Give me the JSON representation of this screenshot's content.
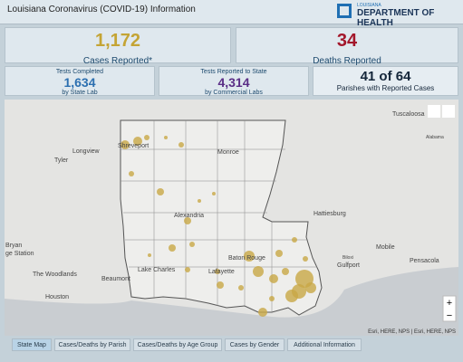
{
  "header": {
    "title": "Louisiana Coronavirus (COVID-19) Information",
    "logo_top": "LOUISIANA",
    "logo_main": "DEPARTMENT OF HEALTH"
  },
  "stats": {
    "cases": {
      "value": "1,172",
      "label": "Cases Reported*"
    },
    "deaths": {
      "value": "34",
      "label": "Deaths Reported"
    },
    "tests_state": {
      "title": "Tests Completed",
      "value": "1,634",
      "label": "by State Lab"
    },
    "tests_commercial": {
      "title": "Tests Reported to State",
      "value": "4,314",
      "label": "by Commercial Labs"
    },
    "parishes": {
      "value": "41 of 64",
      "label": "Parishes with Reported Cases"
    }
  },
  "map": {
    "cities": [
      "Tuscaloosa",
      "Shreveport",
      "Longview",
      "Tyler",
      "Monroe",
      "Alexandria",
      "Hattiesburg",
      "Baton Rouge",
      "Lafayette",
      "Lake Charles",
      "Beaumont",
      "The Woodlands",
      "Houston",
      "Mobile",
      "Pensacola",
      "Gulfport",
      "Biloxi",
      "Bryan",
      "ge Station",
      "Alabama"
    ],
    "attribution": "Esri, HERE, NPS | Esri, HERE, NPS",
    "zoom_in": "+",
    "zoom_out": "−"
  },
  "tabs": [
    "State Map",
    "Cases/Deaths by Parish",
    "Cases/Deaths by Age Group",
    "Cases by Gender",
    "Additional Information"
  ]
}
